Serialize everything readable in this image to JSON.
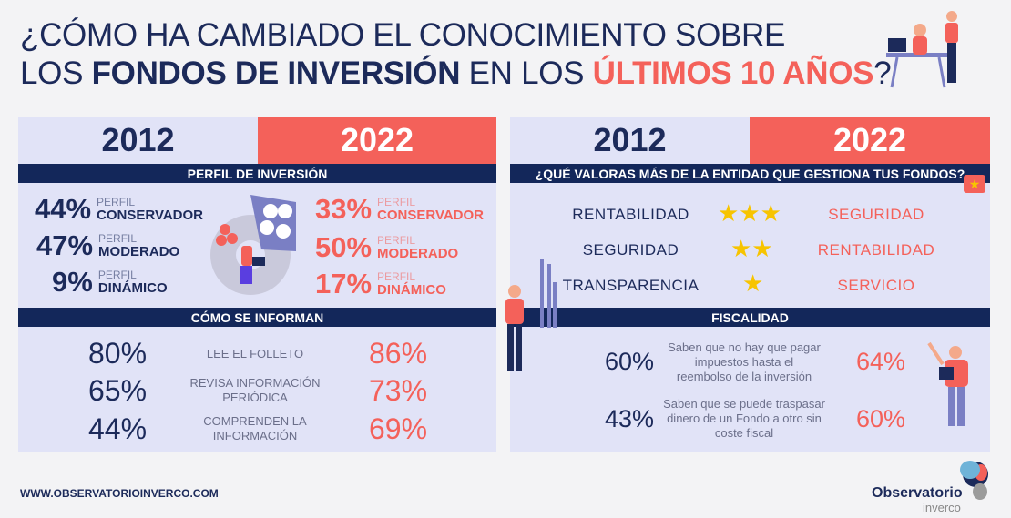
{
  "title": {
    "line1": "¿CÓMO HA CAMBIADO EL CONOCIMIENTO SOBRE",
    "line2_a": "LOS ",
    "line2_b": "FONDOS DE INVERSIÓN",
    "line2_c": " EN LOS ",
    "line2_d": "ÚLTIMOS 10 AÑOS",
    "line2_e": "?"
  },
  "colors": {
    "navy": "#1c2a5a",
    "coral": "#f4615a",
    "panel": "#e1e3f7",
    "bar": "#13275a"
  },
  "years": {
    "a": "2012",
    "b": "2022"
  },
  "perfil": {
    "header": "PERFIL DE INVERSIÓN",
    "prefix": "PERFIL",
    "rows_2012": [
      {
        "pct": "44%",
        "label": "CONSERVADOR"
      },
      {
        "pct": "47%",
        "label": "MODERADO"
      },
      {
        "pct": "9%",
        "label": "DINÁMICO"
      }
    ],
    "rows_2022": [
      {
        "pct": "33%",
        "label": "CONSERVADOR"
      },
      {
        "pct": "50%",
        "label": "MODERADO"
      },
      {
        "pct": "17%",
        "label": "DINÁMICO"
      }
    ]
  },
  "informan": {
    "header": "CÓMO SE INFORMAN",
    "rows": [
      {
        "a": "80%",
        "label": "LEE EL FOLLETO",
        "b": "86%"
      },
      {
        "a": "65%",
        "label": "REVISA INFORMACIÓN PERIÓDICA",
        "b": "73%"
      },
      {
        "a": "44%",
        "label": "COMPRENDEN LA INFORMACIÓN",
        "b": "69%"
      }
    ]
  },
  "valoras": {
    "header": "¿QUÉ VALORAS MÁS DE LA ENTIDAD QUE GESTIONA TUS FONDOS?",
    "rows": [
      {
        "a": "RENTABILIDAD",
        "stars": 3,
        "b": "SEGURIDAD"
      },
      {
        "a": "SEGURIDAD",
        "stars": 2,
        "b": "RENTABILIDAD"
      },
      {
        "a": "TRANSPARENCIA",
        "stars": 1,
        "b": "SERVICIO"
      }
    ]
  },
  "fiscalidad": {
    "header": "FISCALIDAD",
    "rows": [
      {
        "a": "60%",
        "label": "Saben que no hay que pagar impuestos hasta el reembolso de la inversión",
        "b": "64%"
      },
      {
        "a": "43%",
        "label": "Saben que se puede traspasar dinero de un Fondo a otro sin coste fiscal",
        "b": "60%"
      }
    ]
  },
  "footer": {
    "url": "WWW.OBSERVATORIOINVERCO.COM",
    "logo_main": "Observatorio",
    "logo_sub": "inverco"
  }
}
